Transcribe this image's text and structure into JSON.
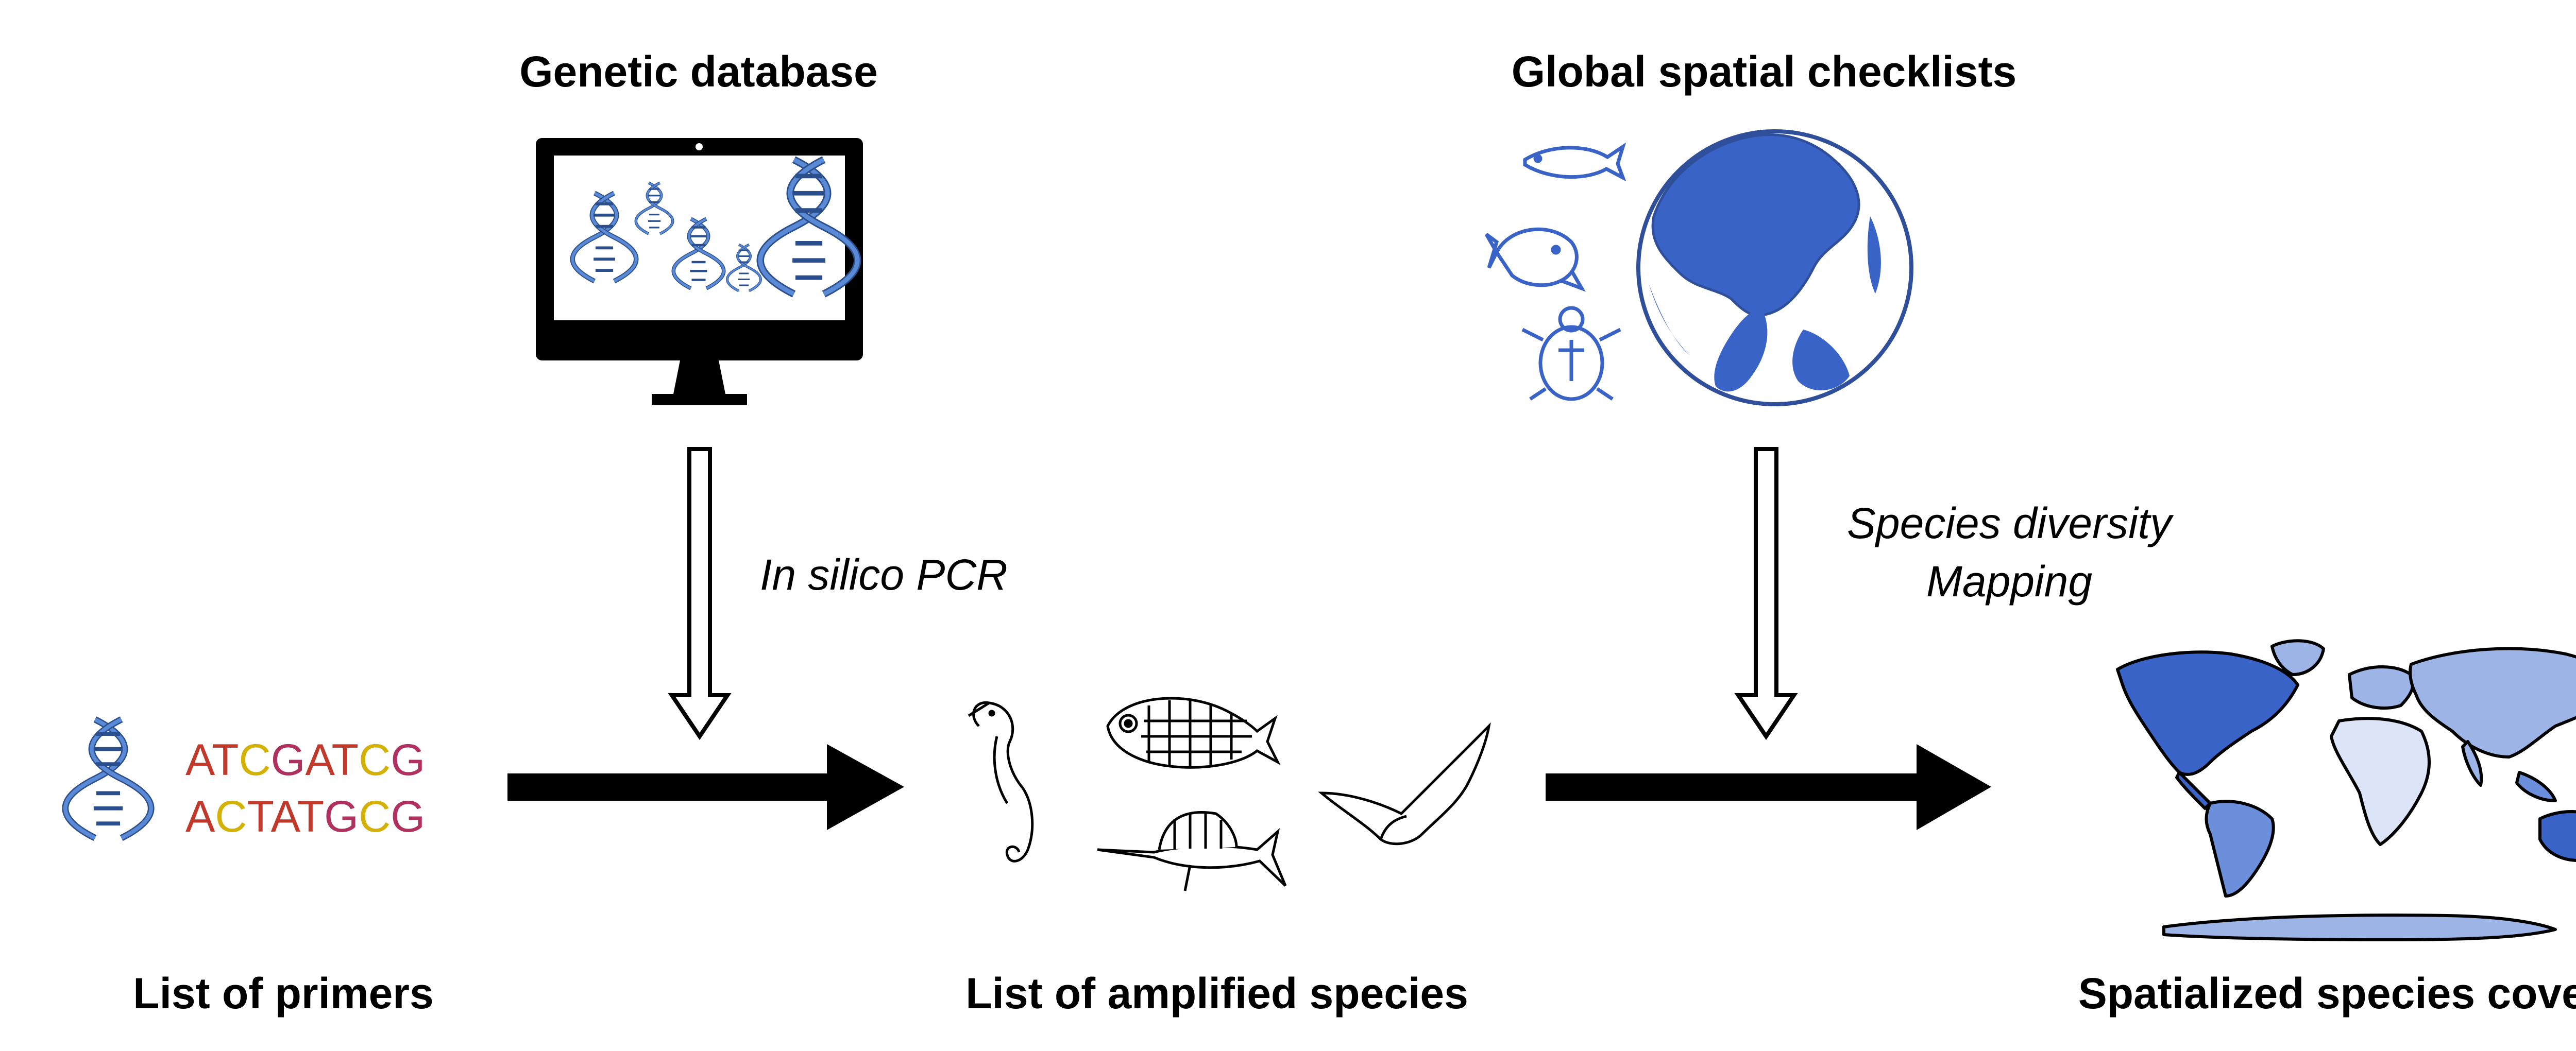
{
  "labels": {
    "genetic_database": "Genetic database",
    "global_checklists": "Global spatial checklists",
    "in_silico_pcr": "In silico PCR",
    "species_diversity": "Species diversity",
    "mapping": "Mapping",
    "list_of_primers": "List of primers",
    "list_of_amplified_species": "List of amplified species",
    "spatialized_coverage": "Spatialized species coverage"
  },
  "primers": [
    [
      {
        "t": "A",
        "c": "#c0392b"
      },
      {
        "t": "T",
        "c": "#c0392b"
      },
      {
        "t": "C",
        "c": "#d4b106"
      },
      {
        "t": "G",
        "c": "#b03060"
      },
      {
        "t": "A",
        "c": "#c0392b"
      },
      {
        "t": "T",
        "c": "#c0392b"
      },
      {
        "t": "C",
        "c": "#d4b106"
      },
      {
        "t": "G",
        "c": "#b03060"
      }
    ],
    [
      {
        "t": "A",
        "c": "#c0392b"
      },
      {
        "t": "C",
        "c": "#d4b106"
      },
      {
        "t": "T",
        "c": "#c0392b"
      },
      {
        "t": "A",
        "c": "#c0392b"
      },
      {
        "t": "T",
        "c": "#c0392b"
      },
      {
        "t": "G",
        "c": "#b03060"
      },
      {
        "t": "C",
        "c": "#d4b106"
      },
      {
        "t": "G",
        "c": "#b03060"
      }
    ]
  ],
  "colors": {
    "dna_blue": "#4a7cc9",
    "globe_blue": "#3a63c7",
    "map_dark": "#3a63c7",
    "map_mid": "#6b8fdb",
    "map_light": "#9db4e6",
    "map_pale": "#dce5f7"
  }
}
